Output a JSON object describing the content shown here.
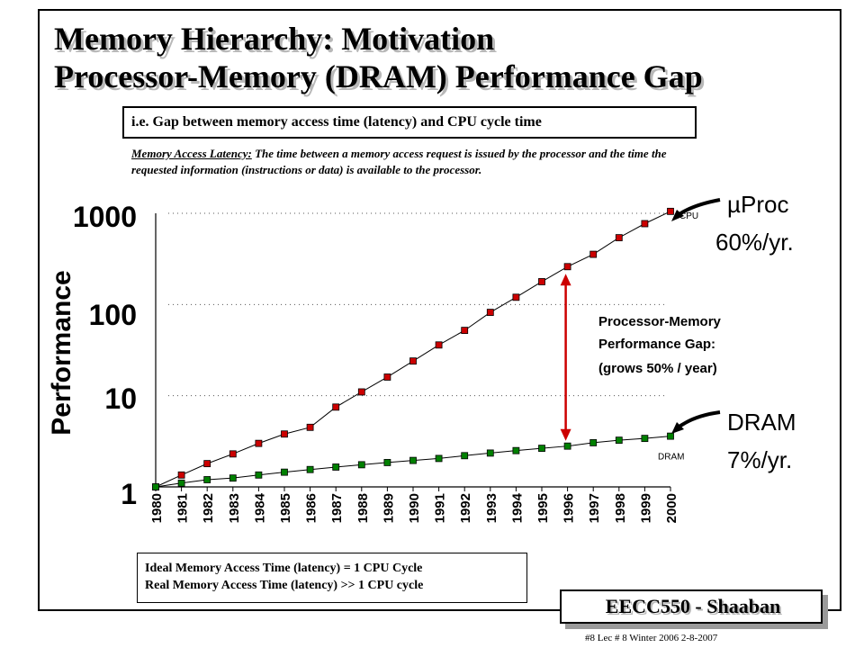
{
  "slide": {
    "title_line1": "Memory Hierarchy:  Motivation",
    "title_line2": "Processor-Memory (DRAM) Performance Gap",
    "gap_box": "i.e.  Gap between memory access time (latency) and CPU cycle time",
    "latency_label": "Memory Access Latency:",
    "latency_text": "  The time between a memory access request is issued by the processor and the time the requested information (instructions or data) is available to the processor.",
    "ideal_line1": "Ideal Memory Access Time (latency) = 1 CPU Cycle",
    "ideal_line2": "Real Memory Access Time (latency) >> 1 CPU cycle",
    "badge": "EECC550  - Shaaban",
    "footer": "#8   Lec # 8   Winter 2006   2-8-2007"
  },
  "chart_data": {
    "type": "line",
    "categories": [
      "1980",
      "1981",
      "1982",
      "1983",
      "1984",
      "1985",
      "1986",
      "1987",
      "1988",
      "1989",
      "1990",
      "1991",
      "1992",
      "1993",
      "1994",
      "1995",
      "1996",
      "1997",
      "1998",
      "1999",
      "2000"
    ],
    "ylabel": "Performance",
    "yscale": "log",
    "yticks": [
      {
        "value": 1,
        "label": "1"
      },
      {
        "value": 10,
        "label": "10"
      },
      {
        "value": 100,
        "label": "100"
      },
      {
        "value": 1000,
        "label": "1000"
      }
    ],
    "ylim": [
      1,
      1000
    ],
    "gridlines": [
      10,
      100,
      1000
    ],
    "grid": true,
    "series": [
      {
        "name": "CPU",
        "color": "#cc0000",
        "values": [
          1,
          1.35,
          1.8,
          2.3,
          3.0,
          3.8,
          4.5,
          7.5,
          11,
          16,
          24,
          36,
          52,
          82,
          120,
          178,
          260,
          355,
          540,
          770,
          1050
        ]
      },
      {
        "name": "DRAM",
        "color": "#008000",
        "values": [
          1,
          1.1,
          1.2,
          1.25,
          1.35,
          1.45,
          1.55,
          1.65,
          1.75,
          1.85,
          1.95,
          2.05,
          2.2,
          2.35,
          2.5,
          2.65,
          2.8,
          3.05,
          3.25,
          3.4,
          3.6
        ]
      }
    ],
    "annotations": {
      "cpu_label": "µProc",
      "cpu_rate": "60%/yr.",
      "dram_label": "DRAM",
      "dram_rate": "7%/yr.",
      "gap_line1": "Processor-Memory",
      "gap_line2": "Performance Gap:",
      "gap_line3": "(grows 50% / year)"
    },
    "colors": {
      "gap_arrow": "#cc0000",
      "cpu_marker": "#cc0000",
      "dram_marker": "#008000"
    }
  }
}
